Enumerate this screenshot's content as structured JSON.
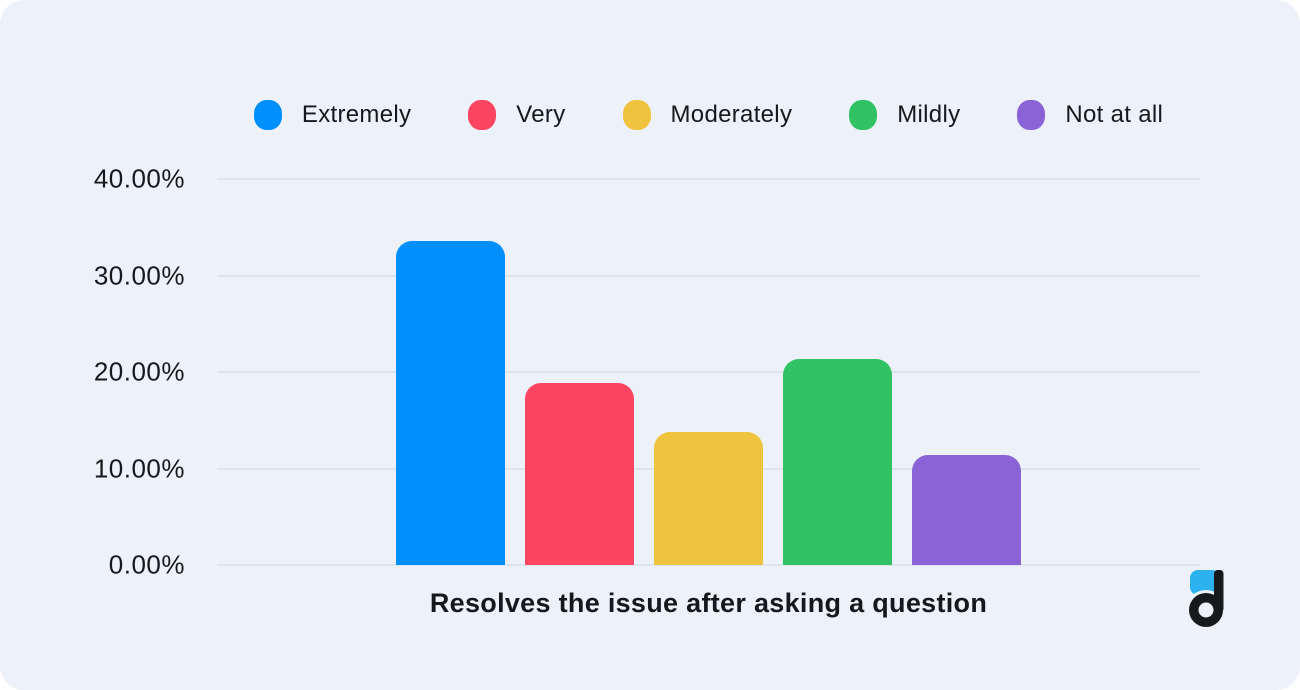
{
  "page": {
    "background_color": "#ffffff",
    "card_background_color": "#edf1f9",
    "gridline_color": "#dbe4f0",
    "text_color": "#15181d"
  },
  "legend": {
    "position": "top",
    "items": [
      {
        "label": "Extremely",
        "color": "#008FFB"
      },
      {
        "label": "Very",
        "color": "#FC4560"
      },
      {
        "label": "Moderately",
        "color": "#EFC33E"
      },
      {
        "label": "Mildly",
        "color": "#31C264"
      },
      {
        "label": "Not at all",
        "color": "#8A63D6"
      }
    ]
  },
  "chart_data": {
    "type": "bar",
    "categories": [
      "Extremely",
      "Very",
      "Moderately",
      "Mildly",
      "Not at all"
    ],
    "values": [
      33.6,
      18.9,
      13.8,
      21.4,
      11.4
    ],
    "colors": [
      "#008FFB",
      "#FC4560",
      "#EFC33E",
      "#31C264",
      "#8A63D6"
    ],
    "title": "",
    "xlabel": "Resolves the issue after asking a question",
    "ylabel": "",
    "ylim": [
      0,
      40
    ],
    "ytick_labels": [
      "40.00%",
      "30.00%",
      "20.00%",
      "10.00%",
      "0.00%"
    ],
    "grid": true,
    "legend_position": "top"
  },
  "logo": {
    "name": "d-logo",
    "accent_color": "#2CB3EF",
    "main_color": "#17191c"
  }
}
